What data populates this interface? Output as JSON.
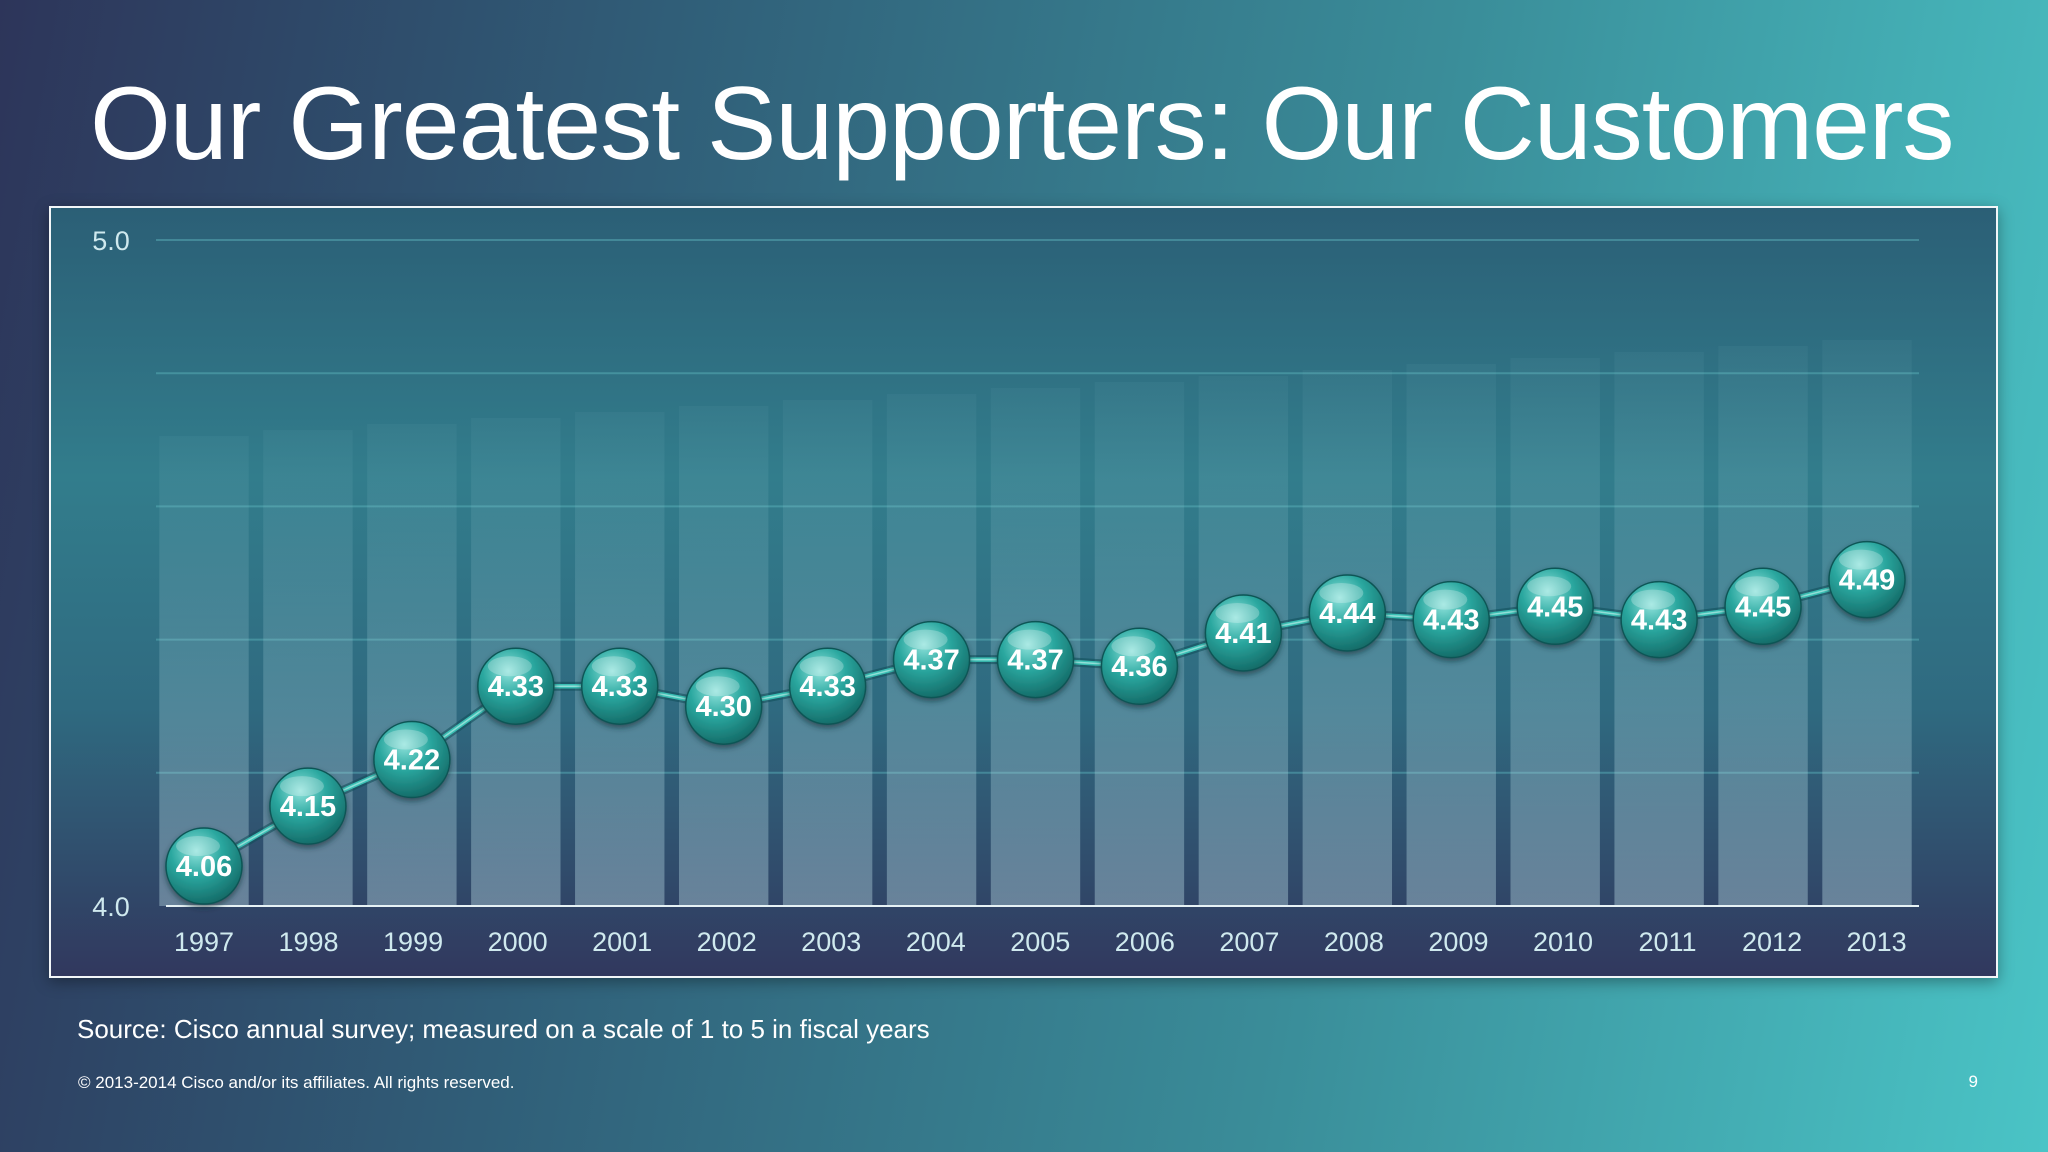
{
  "slide": {
    "title": "Our Greatest Supporters: Our Customers",
    "source_note": "Source: Cisco annual survey; measured on a scale of 1 to 5 in fiscal years",
    "copyright": "© 2013-2014  Cisco and/or its affiliates. All rights reserved.",
    "page_number": "9"
  },
  "chart_data": {
    "type": "line",
    "title": "",
    "xlabel": "",
    "ylabel": "",
    "categories": [
      "1997",
      "1998",
      "1999",
      "2000",
      "2001",
      "2002",
      "2003",
      "2004",
      "2005",
      "2006",
      "2007",
      "2008",
      "2009",
      "2010",
      "2011",
      "2012",
      "2013"
    ],
    "series": [
      {
        "values": [
          4.06,
          4.15,
          4.22,
          4.33,
          4.33,
          4.3,
          4.33,
          4.37,
          4.37,
          4.36,
          4.41,
          4.44,
          4.43,
          4.45,
          4.43,
          4.45,
          4.49
        ]
      }
    ],
    "data_labels": [
      "4.06",
      "4.15",
      "4.22",
      "4.33",
      "4.33",
      "4.30",
      "4.33",
      "4.37",
      "4.37",
      "4.36",
      "4.41",
      "4.44",
      "4.43",
      "4.45",
      "4.43",
      "4.45",
      "4.49"
    ],
    "ylim": [
      4.0,
      5.0
    ],
    "y_tick_labels": [
      "4.0",
      "5.0"
    ],
    "grid": true,
    "legend": "none",
    "colors": {
      "line": "#3bbfb4",
      "marker": "#1f9a93",
      "marker_highlight": "#8fe3dc"
    }
  }
}
